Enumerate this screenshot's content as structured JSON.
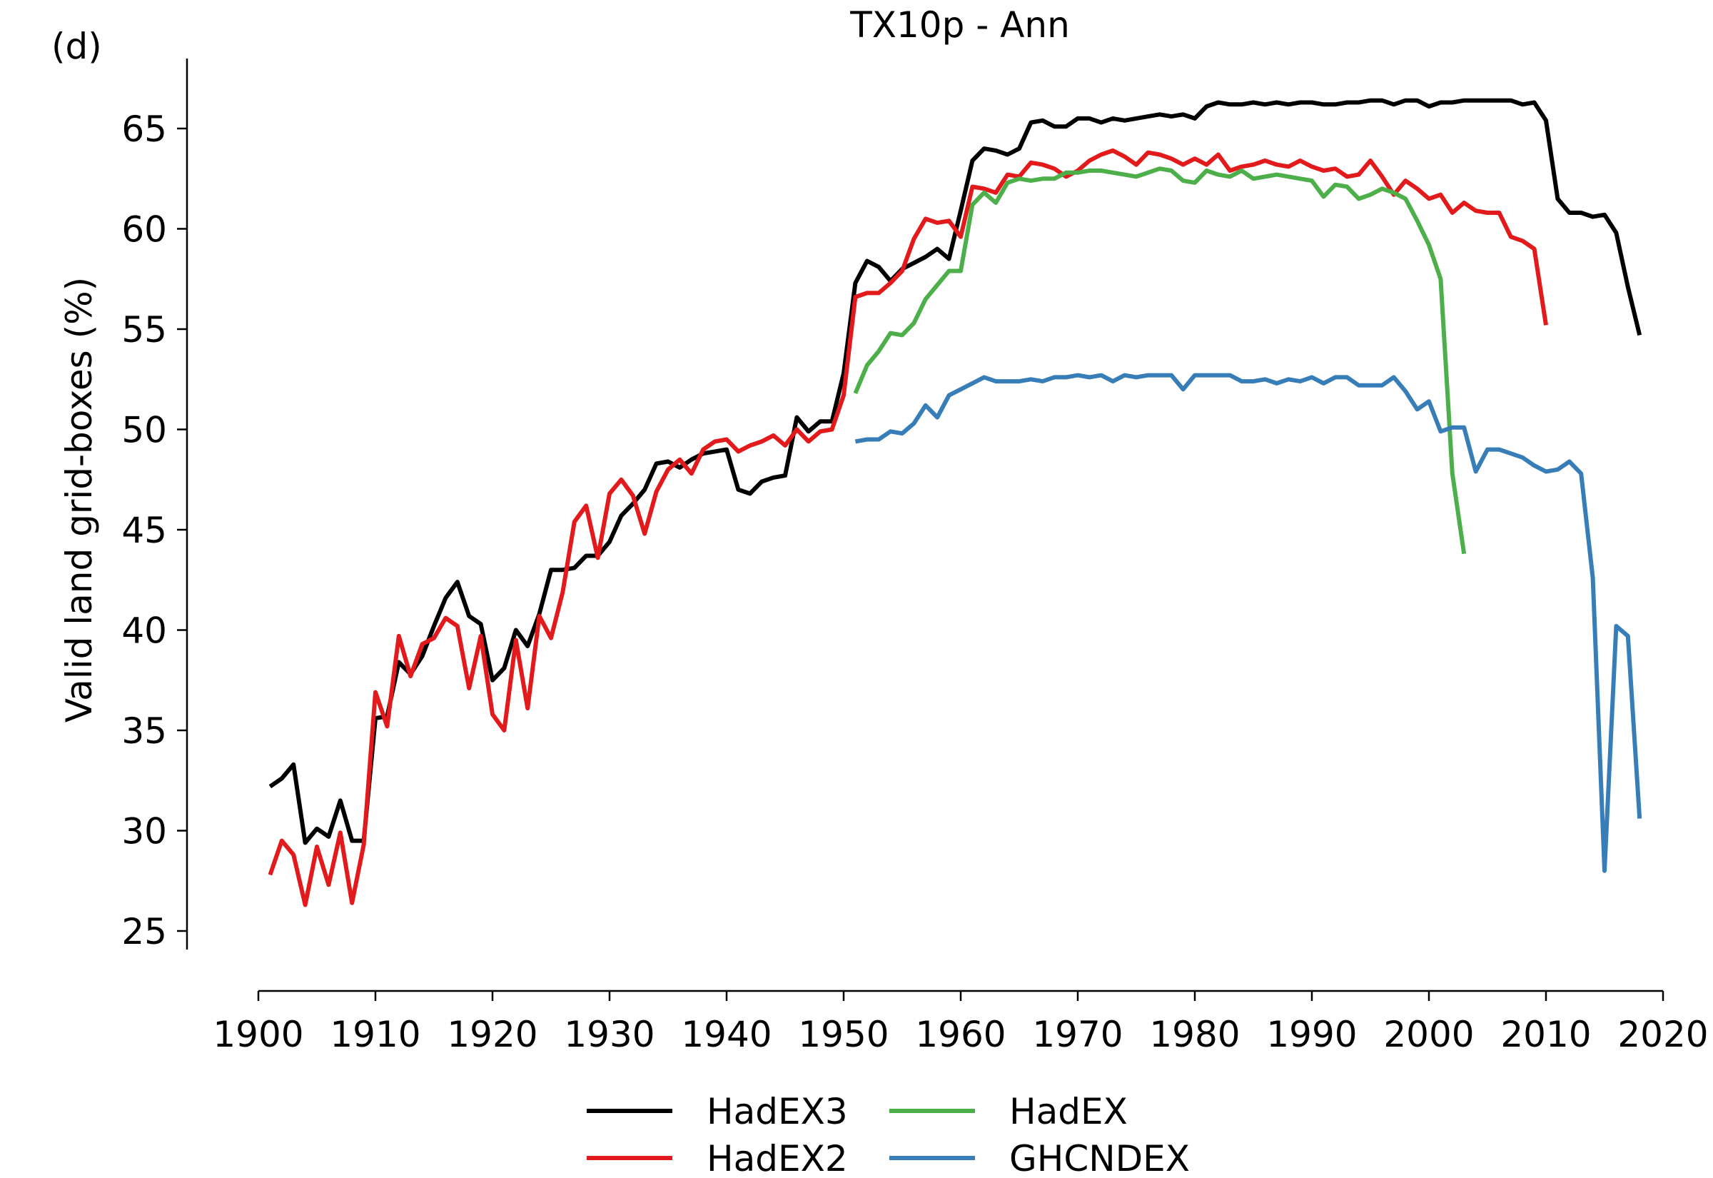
{
  "chart_data": {
    "type": "line",
    "panel_label": "(d)",
    "title": "TX10p - Ann",
    "xlabel": "",
    "ylabel": "Valid land grid-boxes (%)",
    "xlim": [
      1900,
      2020
    ],
    "ylim": [
      24,
      68
    ],
    "xticks": [
      1900,
      1910,
      1920,
      1930,
      1940,
      1950,
      1960,
      1970,
      1980,
      1990,
      2000,
      2010,
      2020
    ],
    "yticks": [
      25,
      30,
      35,
      40,
      45,
      50,
      55,
      60,
      65
    ],
    "grid": false,
    "legend_position": "bottom-center",
    "series": [
      {
        "name": "HadEX3",
        "color": "#000000",
        "x": [
          1901,
          1902,
          1903,
          1904,
          1905,
          1906,
          1907,
          1908,
          1909,
          1910,
          1911,
          1912,
          1913,
          1914,
          1915,
          1916,
          1917,
          1918,
          1919,
          1920,
          1921,
          1922,
          1923,
          1924,
          1925,
          1926,
          1927,
          1928,
          1929,
          1930,
          1931,
          1932,
          1933,
          1934,
          1935,
          1936,
          1937,
          1938,
          1939,
          1940,
          1941,
          1942,
          1943,
          1944,
          1945,
          1946,
          1947,
          1948,
          1949,
          1950,
          1951,
          1952,
          1953,
          1954,
          1955,
          1956,
          1957,
          1958,
          1959,
          1960,
          1961,
          1962,
          1963,
          1964,
          1965,
          1966,
          1967,
          1968,
          1969,
          1970,
          1971,
          1972,
          1973,
          1974,
          1975,
          1976,
          1977,
          1978,
          1979,
          1980,
          1981,
          1982,
          1983,
          1984,
          1985,
          1986,
          1987,
          1988,
          1989,
          1990,
          1991,
          1992,
          1993,
          1994,
          1995,
          1996,
          1997,
          1998,
          1999,
          2000,
          2001,
          2002,
          2003,
          2004,
          2005,
          2006,
          2007,
          2008,
          2009,
          2010,
          2011,
          2012,
          2013,
          2014,
          2015,
          2016,
          2017,
          2018
        ],
        "y": [
          32.2,
          32.6,
          33.3,
          29.4,
          30.1,
          29.7,
          31.5,
          29.5,
          29.5,
          35.6,
          35.7,
          38.4,
          37.8,
          38.7,
          40.2,
          41.6,
          42.4,
          40.7,
          40.3,
          37.5,
          38.1,
          40.0,
          39.2,
          40.8,
          43.0,
          43.0,
          43.1,
          43.7,
          43.7,
          44.4,
          45.7,
          46.3,
          47.0,
          48.3,
          48.4,
          48.1,
          48.5,
          48.8,
          48.9,
          49.0,
          47.0,
          46.8,
          47.4,
          47.6,
          47.7,
          50.6,
          49.9,
          50.4,
          50.4,
          52.8,
          57.3,
          58.4,
          58.1,
          57.4,
          58.0,
          58.3,
          58.6,
          59.0,
          58.5,
          60.9,
          63.4,
          64.0,
          63.9,
          63.7,
          64.0,
          65.3,
          65.4,
          65.1,
          65.1,
          65.5,
          65.5,
          65.3,
          65.5,
          65.4,
          65.5,
          65.6,
          65.7,
          65.6,
          65.7,
          65.5,
          66.1,
          66.3,
          66.2,
          66.2,
          66.3,
          66.2,
          66.3,
          66.2,
          66.3,
          66.3,
          66.2,
          66.2,
          66.3,
          66.3,
          66.4,
          66.4,
          66.2,
          66.4,
          66.4,
          66.1,
          66.3,
          66.3,
          66.4,
          66.4,
          66.4,
          66.4,
          66.4,
          66.2,
          66.3,
          65.4,
          61.5,
          60.8,
          60.8,
          60.6,
          60.7,
          59.8,
          57.1,
          54.7
        ]
      },
      {
        "name": "HadEX2",
        "color": "#e31a1c",
        "x": [
          1901,
          1902,
          1903,
          1904,
          1905,
          1906,
          1907,
          1908,
          1909,
          1910,
          1911,
          1912,
          1913,
          1914,
          1915,
          1916,
          1917,
          1918,
          1919,
          1920,
          1921,
          1922,
          1923,
          1924,
          1925,
          1926,
          1927,
          1928,
          1929,
          1930,
          1931,
          1932,
          1933,
          1934,
          1935,
          1936,
          1937,
          1938,
          1939,
          1940,
          1941,
          1942,
          1943,
          1944,
          1945,
          1946,
          1947,
          1948,
          1949,
          1950,
          1951,
          1952,
          1953,
          1954,
          1955,
          1956,
          1957,
          1958,
          1959,
          1960,
          1961,
          1962,
          1963,
          1964,
          1965,
          1966,
          1967,
          1968,
          1969,
          1970,
          1971,
          1972,
          1973,
          1974,
          1975,
          1976,
          1977,
          1978,
          1979,
          1980,
          1981,
          1982,
          1983,
          1984,
          1985,
          1986,
          1987,
          1988,
          1989,
          1990,
          1991,
          1992,
          1993,
          1994,
          1995,
          1996,
          1997,
          1998,
          1999,
          2000,
          2001,
          2002,
          2003,
          2004,
          2005,
          2006,
          2007,
          2008,
          2009,
          2010
        ],
        "y": [
          27.8,
          29.5,
          28.8,
          26.3,
          29.2,
          27.3,
          29.9,
          26.4,
          29.3,
          36.9,
          35.2,
          39.7,
          37.7,
          39.3,
          39.6,
          40.6,
          40.2,
          37.1,
          39.7,
          35.8,
          35.0,
          39.5,
          36.1,
          40.7,
          39.6,
          41.9,
          45.4,
          46.2,
          43.6,
          46.8,
          47.5,
          46.7,
          44.8,
          46.9,
          48.0,
          48.5,
          47.8,
          49.0,
          49.4,
          49.5,
          48.9,
          49.2,
          49.4,
          49.7,
          49.2,
          50.0,
          49.4,
          49.9,
          50.0,
          51.7,
          56.6,
          56.8,
          56.8,
          57.3,
          57.9,
          59.5,
          60.5,
          60.3,
          60.4,
          59.6,
          62.1,
          62.0,
          61.8,
          62.7,
          62.6,
          63.3,
          63.2,
          63.0,
          62.6,
          62.9,
          63.4,
          63.7,
          63.9,
          63.6,
          63.2,
          63.8,
          63.7,
          63.5,
          63.2,
          63.5,
          63.2,
          63.7,
          62.9,
          63.1,
          63.2,
          63.4,
          63.2,
          63.1,
          63.4,
          63.1,
          62.9,
          63.0,
          62.6,
          62.7,
          63.4,
          62.6,
          61.7,
          62.4,
          62.0,
          61.5,
          61.7,
          60.8,
          61.3,
          60.9,
          60.8,
          60.8,
          59.6,
          59.4,
          59.0,
          55.2
        ]
      },
      {
        "name": "HadEX",
        "color": "#4daf4a",
        "x": [
          1951,
          1952,
          1953,
          1954,
          1955,
          1956,
          1957,
          1958,
          1959,
          1960,
          1961,
          1962,
          1963,
          1964,
          1965,
          1966,
          1967,
          1968,
          1969,
          1970,
          1971,
          1972,
          1973,
          1974,
          1975,
          1976,
          1977,
          1978,
          1979,
          1980,
          1981,
          1982,
          1983,
          1984,
          1985,
          1986,
          1987,
          1988,
          1989,
          1990,
          1991,
          1992,
          1993,
          1994,
          1995,
          1996,
          1997,
          1998,
          1999,
          2000,
          2001,
          2002,
          2003
        ],
        "y": [
          51.8,
          53.2,
          53.9,
          54.8,
          54.7,
          55.3,
          56.5,
          57.2,
          57.9,
          57.9,
          61.2,
          61.8,
          61.3,
          62.3,
          62.5,
          62.4,
          62.5,
          62.5,
          62.8,
          62.8,
          62.9,
          62.9,
          62.8,
          62.7,
          62.6,
          62.8,
          63.0,
          62.9,
          62.4,
          62.3,
          62.9,
          62.7,
          62.6,
          62.9,
          62.5,
          62.6,
          62.7,
          62.6,
          62.5,
          62.4,
          61.6,
          62.2,
          62.1,
          61.5,
          61.7,
          62.0,
          61.8,
          61.5,
          60.4,
          59.2,
          57.5,
          47.8,
          43.8
        ]
      },
      {
        "name": "GHCNDEX",
        "color": "#377eb8",
        "x": [
          1951,
          1952,
          1953,
          1954,
          1955,
          1956,
          1957,
          1958,
          1959,
          1960,
          1961,
          1962,
          1963,
          1964,
          1965,
          1966,
          1967,
          1968,
          1969,
          1970,
          1971,
          1972,
          1973,
          1974,
          1975,
          1976,
          1977,
          1978,
          1979,
          1980,
          1981,
          1982,
          1983,
          1984,
          1985,
          1986,
          1987,
          1988,
          1989,
          1990,
          1991,
          1992,
          1993,
          1994,
          1995,
          1996,
          1997,
          1998,
          1999,
          2000,
          2001,
          2002,
          2003,
          2004,
          2005,
          2006,
          2007,
          2008,
          2009,
          2010,
          2011,
          2012,
          2013,
          2014,
          2015,
          2016,
          2017,
          2018
        ],
        "y": [
          49.4,
          49.5,
          49.5,
          49.9,
          49.8,
          50.3,
          51.2,
          50.6,
          51.7,
          52.0,
          52.3,
          52.6,
          52.4,
          52.4,
          52.4,
          52.5,
          52.4,
          52.6,
          52.6,
          52.7,
          52.6,
          52.7,
          52.4,
          52.7,
          52.6,
          52.7,
          52.7,
          52.7,
          52.0,
          52.7,
          52.7,
          52.7,
          52.7,
          52.4,
          52.4,
          52.5,
          52.3,
          52.5,
          52.4,
          52.6,
          52.3,
          52.6,
          52.6,
          52.2,
          52.2,
          52.2,
          52.6,
          51.9,
          51.0,
          51.4,
          49.9,
          50.1,
          50.1,
          47.9,
          49.0,
          49.0,
          48.8,
          48.6,
          48.2,
          47.9,
          48.0,
          48.4,
          47.8,
          42.6,
          28.0,
          40.2,
          39.7,
          30.6
        ]
      }
    ]
  }
}
